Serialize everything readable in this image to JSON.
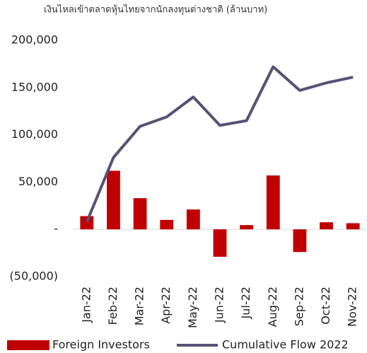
{
  "chart_data": {
    "type": "bar",
    "title": "เงินไหลเข้าตลาดหุ้นไทยจากนักลงทุนต่างชาติ (ล้านบาท)",
    "categories": [
      "Jan-22",
      "Feb-22",
      "Mar-22",
      "Apr-22",
      "May-22",
      "Jun-22",
      "Jul-22",
      "Aug-22",
      "Sep-22",
      "Oct-22",
      "Nov-22"
    ],
    "series": [
      {
        "name": "Foreign Investors",
        "color": "#c00000",
        "type": "bar",
        "values": [
          14000,
          62000,
          33000,
          10000,
          21000,
          -29000,
          4500,
          57000,
          -24000,
          7500,
          6500
        ]
      },
      {
        "name": "Cumulative Flow 2022",
        "color": "#575175",
        "type": "line",
        "values": [
          8000,
          76000,
          109000,
          119000,
          140000,
          110000,
          115000,
          172000,
          147000,
          155000,
          161000
        ]
      }
    ],
    "ylim": [
      -50000,
      200000
    ],
    "yticks": [
      {
        "value": -50000,
        "label": "(50,000)"
      },
      {
        "value": 0,
        "label": "-"
      },
      {
        "value": 50000,
        "label": "50,000"
      },
      {
        "value": 100000,
        "label": "100,000"
      },
      {
        "value": 150000,
        "label": "150,000"
      },
      {
        "value": 200000,
        "label": "200,000"
      }
    ],
    "legend": "bottom"
  }
}
